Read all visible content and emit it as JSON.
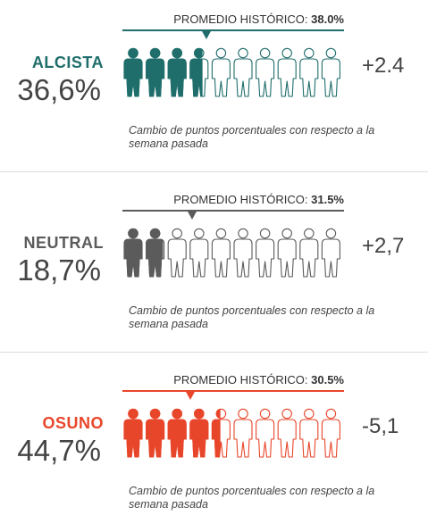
{
  "chart_data": {
    "type": "pictogram",
    "icons_per_row": 10,
    "marker_label": "PROMEDIO HISTÓRICO:",
    "note": "Cambio de puntos porcentuales con respecto a la semana pasada",
    "series": [
      {
        "name": "ALCISTA",
        "value_label": "36,6%",
        "value": 36.6,
        "historical_average_label": "38.0%",
        "historical_average": 38.0,
        "change_label": "+2.4",
        "change": 2.4,
        "color": "#1f6e6b"
      },
      {
        "name": "NEUTRAL",
        "value_label": "18,7%",
        "value": 18.7,
        "historical_average_label": "31.5%",
        "historical_average": 31.5,
        "change_label": "+2,7",
        "change": 2.7,
        "color": "#5b5b5b"
      },
      {
        "name": "OSUNO",
        "value_label": "44,7%",
        "value": 44.7,
        "historical_average_label": "30.5%",
        "historical_average": 30.5,
        "change_label": "-5,1",
        "change": -5.1,
        "color": "#e8462a"
      }
    ]
  }
}
